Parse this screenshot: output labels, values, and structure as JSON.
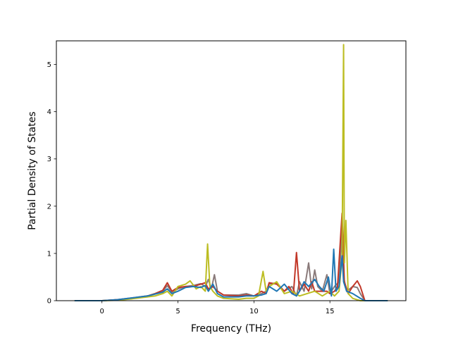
{
  "chart_data": {
    "type": "line",
    "xlabel": "Frequency (THz)",
    "ylabel": "Partial Density of States",
    "xlim": [
      -3.0,
      20.0
    ],
    "ylim": [
      0,
      5.5
    ],
    "xticks": [
      0,
      5,
      10,
      15
    ],
    "xtick_labels": [
      "0",
      "5",
      "10",
      "15"
    ],
    "yticks": [
      0,
      1,
      2,
      3,
      4,
      5
    ],
    "ytick_labels": [
      "0",
      "1",
      "2",
      "3",
      "4",
      "5"
    ],
    "grid": false,
    "series": [
      {
        "color": "#8a7a7a",
        "points": [
          [
            -1.8,
            0
          ],
          [
            0,
            0
          ],
          [
            1,
            0.02
          ],
          [
            2,
            0.06
          ],
          [
            3,
            0.1
          ],
          [
            3.5,
            0.15
          ],
          [
            4,
            0.2
          ],
          [
            4.3,
            0.32
          ],
          [
            4.6,
            0.18
          ],
          [
            5,
            0.25
          ],
          [
            5.5,
            0.3
          ],
          [
            6,
            0.32
          ],
          [
            6.5,
            0.36
          ],
          [
            6.8,
            0.3
          ],
          [
            7.0,
            0.45
          ],
          [
            7.2,
            0.25
          ],
          [
            7.4,
            0.55
          ],
          [
            7.6,
            0.2
          ],
          [
            8,
            0.12
          ],
          [
            9,
            0.12
          ],
          [
            9.5,
            0.15
          ],
          [
            10,
            0.1
          ],
          [
            10.5,
            0.15
          ],
          [
            10.8,
            0.2
          ],
          [
            11,
            0.35
          ],
          [
            11.5,
            0.38
          ],
          [
            12,
            0.2
          ],
          [
            12.5,
            0.3
          ],
          [
            12.8,
            0.1
          ],
          [
            13,
            0.4
          ],
          [
            13.3,
            0.2
          ],
          [
            13.6,
            0.8
          ],
          [
            13.8,
            0.25
          ],
          [
            14,
            0.65
          ],
          [
            14.2,
            0.3
          ],
          [
            14.5,
            0.2
          ],
          [
            14.8,
            0.55
          ],
          [
            15,
            0.15
          ],
          [
            15.3,
            0.3
          ],
          [
            15.6,
            0.4
          ],
          [
            15.8,
            1.55
          ],
          [
            15.9,
            0.5
          ],
          [
            16.1,
            0.2
          ],
          [
            16.5,
            0.3
          ],
          [
            16.8,
            0.28
          ],
          [
            17,
            0.15
          ],
          [
            17.3,
            0
          ],
          [
            18.8,
            0
          ]
        ]
      },
      {
        "color": "#c23728",
        "points": [
          [
            -1.8,
            0
          ],
          [
            0,
            0
          ],
          [
            1,
            0.02
          ],
          [
            2,
            0.05
          ],
          [
            3,
            0.1
          ],
          [
            3.5,
            0.15
          ],
          [
            4,
            0.22
          ],
          [
            4.3,
            0.38
          ],
          [
            4.6,
            0.2
          ],
          [
            5,
            0.28
          ],
          [
            5.5,
            0.3
          ],
          [
            6,
            0.3
          ],
          [
            6.5,
            0.35
          ],
          [
            6.8,
            0.38
          ],
          [
            7.0,
            0.25
          ],
          [
            7.3,
            0.3
          ],
          [
            7.6,
            0.2
          ],
          [
            8,
            0.12
          ],
          [
            9,
            0.1
          ],
          [
            9.5,
            0.12
          ],
          [
            10,
            0.1
          ],
          [
            10.5,
            0.2
          ],
          [
            10.8,
            0.15
          ],
          [
            11,
            0.38
          ],
          [
            11.5,
            0.35
          ],
          [
            12,
            0.2
          ],
          [
            12.3,
            0.3
          ],
          [
            12.6,
            0.15
          ],
          [
            12.8,
            1.02
          ],
          [
            13,
            0.2
          ],
          [
            13.3,
            0.35
          ],
          [
            13.6,
            0.2
          ],
          [
            13.8,
            0.4
          ],
          [
            14,
            0.2
          ],
          [
            14.5,
            0.2
          ],
          [
            14.8,
            0.2
          ],
          [
            15,
            0.15
          ],
          [
            15.3,
            0.2
          ],
          [
            15.5,
            0.3
          ],
          [
            15.8,
            1.85
          ],
          [
            15.95,
            0.4
          ],
          [
            16.2,
            0.15
          ],
          [
            16.5,
            0.3
          ],
          [
            16.8,
            0.42
          ],
          [
            17,
            0.3
          ],
          [
            17.3,
            0
          ],
          [
            18.8,
            0
          ]
        ]
      },
      {
        "color": "#bcbd22",
        "points": [
          [
            -1.8,
            0
          ],
          [
            0,
            0
          ],
          [
            1,
            0.01
          ],
          [
            2,
            0.04
          ],
          [
            3,
            0.08
          ],
          [
            3.5,
            0.1
          ],
          [
            4,
            0.15
          ],
          [
            4.3,
            0.2
          ],
          [
            4.6,
            0.1
          ],
          [
            5,
            0.3
          ],
          [
            5.5,
            0.35
          ],
          [
            5.8,
            0.42
          ],
          [
            6.2,
            0.25
          ],
          [
            6.5,
            0.3
          ],
          [
            6.8,
            0.2
          ],
          [
            6.95,
            1.2
          ],
          [
            7.1,
            0.3
          ],
          [
            7.3,
            0.2
          ],
          [
            7.6,
            0.1
          ],
          [
            8,
            0.05
          ],
          [
            9,
            0.03
          ],
          [
            9.5,
            0.05
          ],
          [
            10,
            0.05
          ],
          [
            10.3,
            0.1
          ],
          [
            10.6,
            0.62
          ],
          [
            10.8,
            0.2
          ],
          [
            11,
            0.3
          ],
          [
            11.5,
            0.4
          ],
          [
            12,
            0.15
          ],
          [
            12.5,
            0.2
          ],
          [
            13,
            0.1
          ],
          [
            13.5,
            0.15
          ],
          [
            14,
            0.2
          ],
          [
            14.5,
            0.1
          ],
          [
            15,
            0.2
          ],
          [
            15.3,
            0.1
          ],
          [
            15.6,
            0.2
          ],
          [
            15.8,
            0.9
          ],
          [
            15.9,
            5.42
          ],
          [
            15.95,
            0.8
          ],
          [
            16.05,
            1.7
          ],
          [
            16.2,
            0.15
          ],
          [
            16.5,
            0.05
          ],
          [
            17,
            0
          ],
          [
            18.8,
            0
          ]
        ]
      },
      {
        "color": "#1f77b4",
        "points": [
          [
            -1.8,
            0
          ],
          [
            0,
            0
          ],
          [
            1,
            0.02
          ],
          [
            2,
            0.06
          ],
          [
            3,
            0.1
          ],
          [
            3.5,
            0.14
          ],
          [
            4,
            0.18
          ],
          [
            4.3,
            0.25
          ],
          [
            4.6,
            0.15
          ],
          [
            5,
            0.2
          ],
          [
            5.5,
            0.28
          ],
          [
            6,
            0.3
          ],
          [
            6.5,
            0.28
          ],
          [
            6.8,
            0.32
          ],
          [
            7.0,
            0.2
          ],
          [
            7.3,
            0.35
          ],
          [
            7.6,
            0.15
          ],
          [
            8,
            0.08
          ],
          [
            9,
            0.08
          ],
          [
            9.5,
            0.1
          ],
          [
            10,
            0.1
          ],
          [
            10.5,
            0.12
          ],
          [
            10.8,
            0.15
          ],
          [
            11,
            0.3
          ],
          [
            11.5,
            0.2
          ],
          [
            12,
            0.35
          ],
          [
            12.5,
            0.15
          ],
          [
            12.8,
            0.1
          ],
          [
            13,
            0.2
          ],
          [
            13.3,
            0.4
          ],
          [
            13.6,
            0.3
          ],
          [
            14,
            0.45
          ],
          [
            14.3,
            0.3
          ],
          [
            14.6,
            0.2
          ],
          [
            14.9,
            0.5
          ],
          [
            15.1,
            0.1
          ],
          [
            15.25,
            1.09
          ],
          [
            15.4,
            0.2
          ],
          [
            15.6,
            0.3
          ],
          [
            15.8,
            0.95
          ],
          [
            15.9,
            0.4
          ],
          [
            16.1,
            0.2
          ],
          [
            16.5,
            0.15
          ],
          [
            17,
            0.05
          ],
          [
            17.3,
            0
          ],
          [
            18.8,
            0
          ]
        ]
      }
    ]
  }
}
